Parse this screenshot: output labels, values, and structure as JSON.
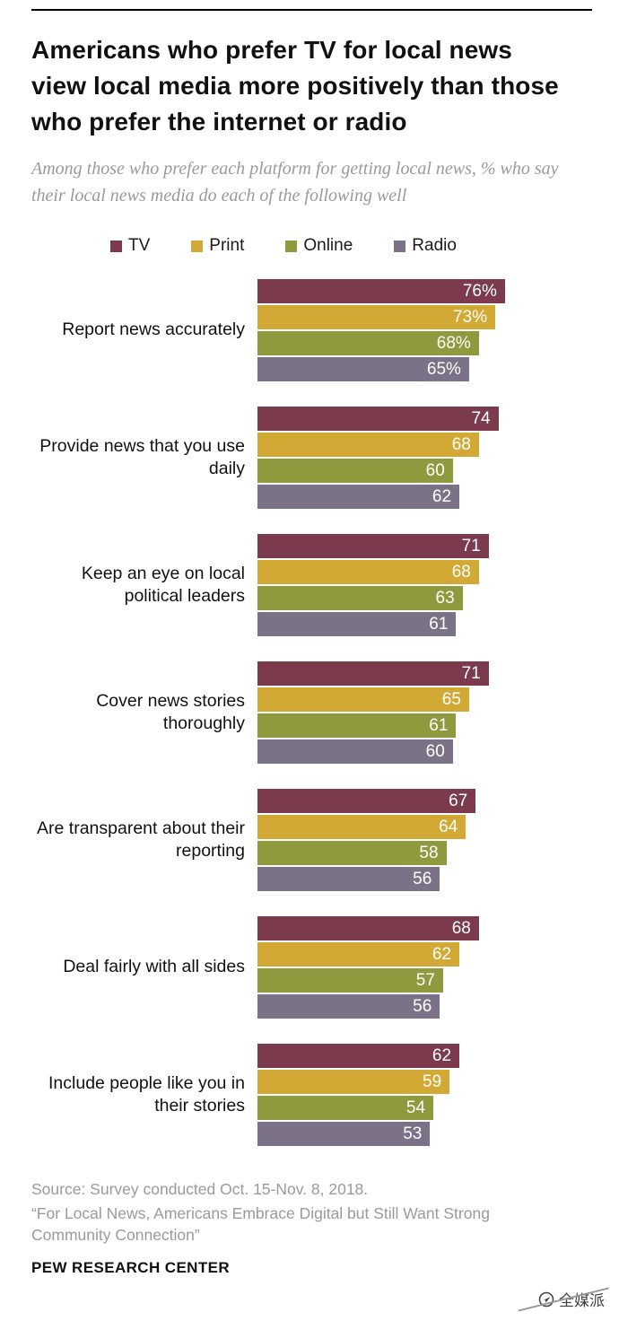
{
  "header": {
    "title": "Americans who prefer TV for local news view local media more positively than those who prefer the internet or radio",
    "subtitle": "Among those who prefer each platform for getting local news, % who say their local news media do each of the following well"
  },
  "chart_data": {
    "type": "bar",
    "orientation": "horizontal",
    "unit": "%",
    "xlim": [
      0,
      100
    ],
    "legend_position": "top",
    "grid": false,
    "series": [
      {
        "name": "TV",
        "color": "#7c3a4d"
      },
      {
        "name": "Print",
        "color": "#d3a935"
      },
      {
        "name": "Online",
        "color": "#8f9a3f"
      },
      {
        "name": "Radio",
        "color": "#7c7287"
      }
    ],
    "categories": [
      "Report news accurately",
      "Provide news that you use daily",
      "Keep an eye on local political leaders",
      "Cover news stories thoroughly",
      "Are transparent about their reporting",
      "Deal fairly with all sides",
      "Include people like you in their stories"
    ],
    "groups": [
      {
        "label": "Report news accurately",
        "bars": [
          {
            "series": "TV",
            "value": 76,
            "display": "76%"
          },
          {
            "series": "Print",
            "value": 73,
            "display": "73%"
          },
          {
            "series": "Online",
            "value": 68,
            "display": "68%"
          },
          {
            "series": "Radio",
            "value": 65,
            "display": "65%"
          }
        ]
      },
      {
        "label": "Provide news that you use daily",
        "bars": [
          {
            "series": "TV",
            "value": 74,
            "display": "74"
          },
          {
            "series": "Print",
            "value": 68,
            "display": "68"
          },
          {
            "series": "Online",
            "value": 60,
            "display": "60"
          },
          {
            "series": "Radio",
            "value": 62,
            "display": "62"
          }
        ]
      },
      {
        "label": "Keep an eye on local political leaders",
        "bars": [
          {
            "series": "TV",
            "value": 71,
            "display": "71"
          },
          {
            "series": "Print",
            "value": 68,
            "display": "68"
          },
          {
            "series": "Online",
            "value": 63,
            "display": "63"
          },
          {
            "series": "Radio",
            "value": 61,
            "display": "61"
          }
        ]
      },
      {
        "label": "Cover news stories thoroughly",
        "bars": [
          {
            "series": "TV",
            "value": 71,
            "display": "71"
          },
          {
            "series": "Print",
            "value": 65,
            "display": "65"
          },
          {
            "series": "Online",
            "value": 61,
            "display": "61"
          },
          {
            "series": "Radio",
            "value": 60,
            "display": "60"
          }
        ]
      },
      {
        "label": "Are transparent about their reporting",
        "bars": [
          {
            "series": "TV",
            "value": 67,
            "display": "67"
          },
          {
            "series": "Print",
            "value": 64,
            "display": "64"
          },
          {
            "series": "Online",
            "value": 58,
            "display": "58"
          },
          {
            "series": "Radio",
            "value": 56,
            "display": "56"
          }
        ]
      },
      {
        "label": "Deal fairly with all sides",
        "bars": [
          {
            "series": "TV",
            "value": 68,
            "display": "68"
          },
          {
            "series": "Print",
            "value": 62,
            "display": "62"
          },
          {
            "series": "Online",
            "value": 57,
            "display": "57"
          },
          {
            "series": "Radio",
            "value": 56,
            "display": "56"
          }
        ]
      },
      {
        "label": "Include people like you in their stories",
        "bars": [
          {
            "series": "TV",
            "value": 62,
            "display": "62"
          },
          {
            "series": "Print",
            "value": 59,
            "display": "59"
          },
          {
            "series": "Online",
            "value": 54,
            "display": "54"
          },
          {
            "series": "Radio",
            "value": 53,
            "display": "53"
          }
        ]
      }
    ]
  },
  "footer": {
    "source_line1": "Source: Survey conducted Oct. 15-Nov. 8, 2018.",
    "source_line2": "“For Local News, Americans Embrace Digital but Still Want Strong Community Connection”",
    "brand": "PEW RESEARCH CENTER"
  },
  "watermark": {
    "text": "全媒派"
  }
}
